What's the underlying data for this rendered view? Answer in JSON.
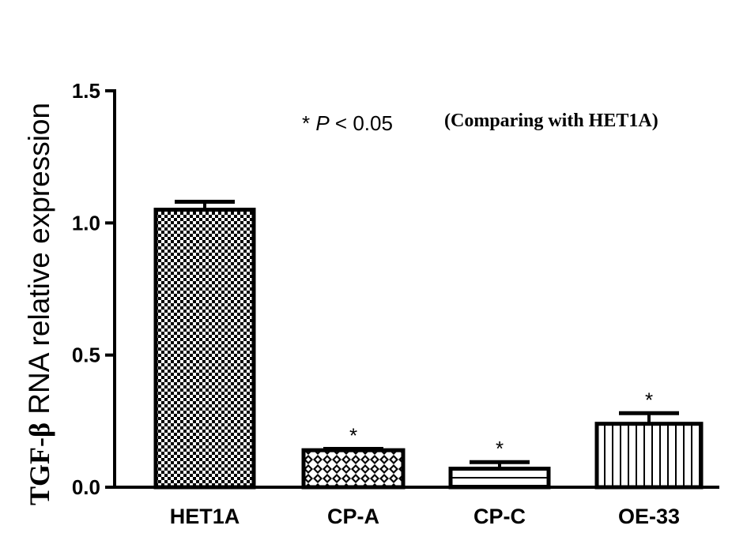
{
  "chart_data": {
    "type": "bar",
    "ylabel_prefix": "TGF-β",
    "ylabel_rest": " RNA relative expression",
    "categories": [
      "HET1A",
      "CP-A",
      "CP-C",
      "OE-33"
    ],
    "values": [
      1.05,
      0.14,
      0.07,
      0.24
    ],
    "errors": [
      0.03,
      0.005,
      0.025,
      0.04
    ],
    "significance": [
      "",
      "*",
      "*",
      "*"
    ],
    "patterns": [
      "checker",
      "diamond",
      "horizontal-lines",
      "vertical-lines"
    ],
    "ylim": [
      0,
      1.5
    ],
    "yticks": [
      "0.0",
      "0.5",
      "1.0",
      "1.5"
    ],
    "annotation": {
      "star": "* ",
      "p": "P",
      "threshold": " < 0.05",
      "comparison": "(Comparing with HET1A)"
    },
    "grid": false,
    "legend": "none",
    "bar_color": "#000000"
  }
}
